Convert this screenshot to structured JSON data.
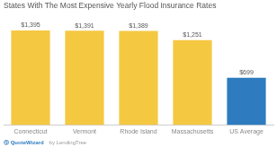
{
  "chart_data": {
    "type": "bar",
    "title": "States With The Most Expensive Yearly Flood Insurance Rates",
    "categories": [
      "Connecticut",
      "Vermont",
      "Rhode Island",
      "Massachusetts",
      "US Average"
    ],
    "values": [
      1395,
      1391,
      1389,
      1251,
      699
    ],
    "value_labels": [
      "$1,395",
      "$1,391",
      "$1,389",
      "$1,251",
      "$699"
    ],
    "data_labels": true,
    "colors": [
      "#F5C842",
      "#F5C842",
      "#F5C842",
      "#F5C842",
      "#2E7BBF"
    ],
    "ylim": [
      0,
      1550
    ],
    "grid": false,
    "tick_labels": "x",
    "annotations": [
      "Ⓠ QuoteWizard",
      "by LendingTree"
    ]
  }
}
